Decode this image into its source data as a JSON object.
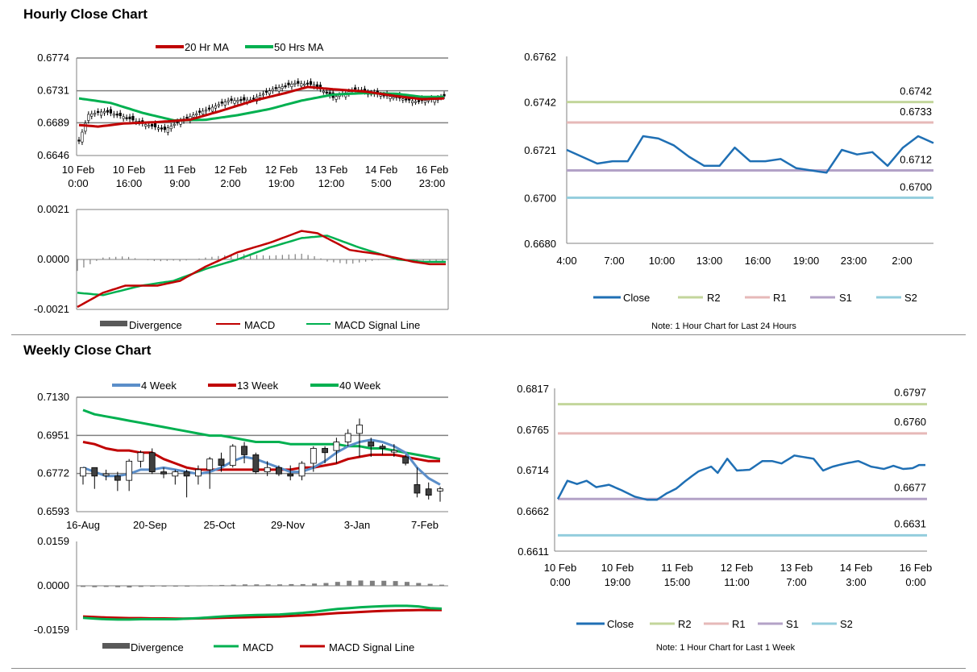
{
  "colors": {
    "ma20": "#c00000",
    "ma50": "#00b050",
    "macd_red": "#c00000",
    "signal_green": "#00b050",
    "divergence": "#7f7f7f",
    "close": "#1f6fb4",
    "r2": "#c3d69b",
    "r1": "#e6b9b8",
    "s1": "#b3a2c7",
    "s2": "#93cddd",
    "wk4": "#5b8ec9",
    "wk13": "#c00000",
    "wk40": "#00b050",
    "candle_up": "#ffffff",
    "candle_down": "#404040",
    "axis": "#808080"
  },
  "hourly": {
    "title": "Hourly Close Chart",
    "price_chart": {
      "legend": [
        "20 Hr MA",
        "50 Hrs MA"
      ],
      "y_ticks": [
        "0.6774",
        "0.6731",
        "0.6689",
        "0.6646"
      ],
      "ylim": [
        0.6646,
        0.6774
      ],
      "x_ticks": [
        [
          "10 Feb",
          "0:00"
        ],
        [
          "10 Feb",
          "16:00"
        ],
        [
          "11 Feb",
          "9:00"
        ],
        [
          "12 Feb",
          "2:00"
        ],
        [
          "12 Feb",
          "19:00"
        ],
        [
          "13 Feb",
          "12:00"
        ],
        [
          "14 Feb",
          "5:00"
        ],
        [
          "16 Feb",
          "23:00"
        ]
      ],
      "chart_data": {
        "type": "candlestick",
        "n": 116,
        "close_anchors": [
          [
            0,
            0.6665
          ],
          [
            3,
            0.67
          ],
          [
            8,
            0.6704
          ],
          [
            14,
            0.6697
          ],
          [
            20,
            0.6688
          ],
          [
            27,
            0.668
          ],
          [
            33,
            0.6694
          ],
          [
            40,
            0.6706
          ],
          [
            47,
            0.6718
          ],
          [
            54,
            0.6719
          ],
          [
            61,
            0.6733
          ],
          [
            68,
            0.6741
          ],
          [
            74,
            0.6739
          ],
          [
            80,
            0.6722
          ],
          [
            87,
            0.6733
          ],
          [
            93,
            0.6727
          ],
          [
            100,
            0.6722
          ],
          [
            106,
            0.6717
          ],
          [
            112,
            0.672
          ],
          [
            115,
            0.6724
          ]
        ],
        "ma20_anchors": [
          [
            0,
            0.6686
          ],
          [
            6,
            0.6684
          ],
          [
            14,
            0.6688
          ],
          [
            25,
            0.669
          ],
          [
            35,
            0.6693
          ],
          [
            45,
            0.6705
          ],
          [
            55,
            0.6718
          ],
          [
            65,
            0.6728
          ],
          [
            72,
            0.6736
          ],
          [
            80,
            0.6733
          ],
          [
            90,
            0.673
          ],
          [
            100,
            0.6724
          ],
          [
            108,
            0.672
          ],
          [
            115,
            0.6721
          ]
        ],
        "ma50_anchors": [
          [
            0,
            0.6721
          ],
          [
            10,
            0.6715
          ],
          [
            20,
            0.6702
          ],
          [
            30,
            0.6692
          ],
          [
            40,
            0.6693
          ],
          [
            50,
            0.6699
          ],
          [
            60,
            0.6707
          ],
          [
            70,
            0.6718
          ],
          [
            80,
            0.6726
          ],
          [
            90,
            0.6728
          ],
          [
            100,
            0.6727
          ],
          [
            108,
            0.6723
          ],
          [
            115,
            0.6723
          ]
        ]
      }
    },
    "macd_chart": {
      "y_ticks": [
        "0.0021",
        "0.0000",
        "-0.0021"
      ],
      "ylim": [
        -0.0021,
        0.0021
      ],
      "legend": [
        "Divergence",
        "MACD",
        "MACD Signal Line"
      ],
      "chart_data": {
        "type": "line+bar",
        "n": 116,
        "macd_anchors": [
          [
            0,
            -0.002
          ],
          [
            8,
            -0.0014
          ],
          [
            15,
            -0.0011
          ],
          [
            25,
            -0.0011
          ],
          [
            32,
            -0.0009
          ],
          [
            40,
            -0.0003
          ],
          [
            50,
            0.0003
          ],
          [
            60,
            0.0007
          ],
          [
            70,
            0.0012
          ],
          [
            75,
            0.0011
          ],
          [
            85,
            0.0004
          ],
          [
            95,
            0.0002
          ],
          [
            105,
            -0.0001
          ],
          [
            110,
            -0.0002
          ],
          [
            115,
            -0.0002
          ]
        ],
        "signal_anchors": [
          [
            0,
            -0.0014
          ],
          [
            8,
            -0.0015
          ],
          [
            20,
            -0.0011
          ],
          [
            30,
            -0.0009
          ],
          [
            40,
            -0.0004
          ],
          [
            50,
            0.0
          ],
          [
            60,
            0.0005
          ],
          [
            70,
            0.0009
          ],
          [
            78,
            0.001
          ],
          [
            88,
            0.0005
          ],
          [
            100,
            0.0
          ],
          [
            108,
            -0.0001
          ],
          [
            115,
            -0.0001
          ]
        ]
      }
    },
    "sr_chart": {
      "y_ticks": [
        "0.6762",
        "0.6742",
        "0.6721",
        "0.6700",
        "0.6680"
      ],
      "ylim": [
        0.668,
        0.6762
      ],
      "x_ticks": [
        "4:00",
        "7:00",
        "10:00",
        "13:00",
        "16:00",
        "19:00",
        "23:00",
        "2:00"
      ],
      "levels": {
        "R2": "0.6742",
        "R1": "0.6733",
        "S1": "0.6712",
        "S2": "0.6700"
      },
      "legend": [
        "Close",
        "R2",
        "R1",
        "S1",
        "S2"
      ],
      "note": "Note: 1 Hour Chart for Last 24 Hours",
      "chart_data": {
        "type": "line",
        "close": [
          0.6721,
          0.6718,
          0.6715,
          0.6716,
          0.6716,
          0.6727,
          0.6726,
          0.6723,
          0.6718,
          0.6714,
          0.6714,
          0.6722,
          0.6716,
          0.6716,
          0.6717,
          0.6713,
          0.6712,
          0.6711,
          0.6721,
          0.6719,
          0.672,
          0.6714,
          0.6722,
          0.6727,
          0.6724
        ],
        "levels": [
          0.6742,
          0.6733,
          0.6712,
          0.67
        ]
      }
    }
  },
  "weekly": {
    "title": "Weekly Close Chart",
    "price_chart": {
      "legend": [
        "4 Week",
        "13 Week",
        "40 Week"
      ],
      "y_ticks": [
        "0.7130",
        "0.6951",
        "0.6772",
        "0.6593"
      ],
      "ylim": [
        0.6593,
        0.713
      ],
      "x_ticks": [
        "16-Aug",
        "20-Sep",
        "25-Oct",
        "29-Nov",
        "3-Jan",
        "7-Feb"
      ],
      "chart_data": {
        "type": "candlestick",
        "candles": [
          [
            0.676,
            0.68,
            0.672,
            0.68
          ],
          [
            0.68,
            0.676,
            0.67,
            0.68
          ],
          [
            0.677,
            0.677,
            0.674,
            0.679
          ],
          [
            0.676,
            0.674,
            0.669,
            0.678
          ],
          [
            0.674,
            0.683,
            0.669,
            0.684
          ],
          [
            0.683,
            0.687,
            0.68,
            0.688
          ],
          [
            0.687,
            0.678,
            0.677,
            0.689
          ],
          [
            0.678,
            0.677,
            0.675,
            0.68
          ],
          [
            0.676,
            0.678,
            0.672,
            0.679
          ],
          [
            0.678,
            0.676,
            0.666,
            0.679
          ],
          [
            0.676,
            0.679,
            0.672,
            0.681
          ],
          [
            0.679,
            0.684,
            0.67,
            0.685
          ],
          [
            0.684,
            0.681,
            0.678,
            0.687
          ],
          [
            0.681,
            0.69,
            0.68,
            0.691
          ],
          [
            0.69,
            0.686,
            0.682,
            0.692
          ],
          [
            0.686,
            0.678,
            0.677,
            0.687
          ],
          [
            0.678,
            0.68,
            0.676,
            0.683
          ],
          [
            0.68,
            0.677,
            0.676,
            0.681
          ],
          [
            0.677,
            0.676,
            0.674,
            0.681
          ],
          [
            0.676,
            0.682,
            0.674,
            0.683
          ],
          [
            0.682,
            0.689,
            0.678,
            0.69
          ],
          [
            0.689,
            0.687,
            0.682,
            0.69
          ],
          [
            0.688,
            0.692,
            0.682,
            0.694
          ],
          [
            0.692,
            0.696,
            0.69,
            0.698
          ],
          [
            0.696,
            0.7,
            0.685,
            0.703
          ],
          [
            0.692,
            0.69,
            0.685,
            0.694
          ],
          [
            0.69,
            0.689,
            0.686,
            0.691
          ],
          [
            0.688,
            0.688,
            0.685,
            0.691
          ],
          [
            0.685,
            0.682,
            0.681,
            0.686
          ],
          [
            0.672,
            0.668,
            0.666,
            0.68
          ],
          [
            0.67,
            0.667,
            0.665,
            0.673
          ],
          [
            0.669,
            0.67,
            0.664,
            0.671
          ]
        ],
        "wk4": [
          0.68,
          0.678,
          0.676,
          0.676,
          0.677,
          0.679,
          0.679,
          0.68,
          0.679,
          0.678,
          0.677,
          0.678,
          0.68,
          0.683,
          0.685,
          0.684,
          0.682,
          0.68,
          0.678,
          0.678,
          0.68,
          0.683,
          0.687,
          0.69,
          0.692,
          0.693,
          0.692,
          0.69,
          0.687,
          0.68,
          0.675,
          0.672
        ],
        "wk13": [
          0.692,
          0.691,
          0.689,
          0.688,
          0.688,
          0.687,
          0.687,
          0.684,
          0.682,
          0.68,
          0.679,
          0.679,
          0.679,
          0.679,
          0.679,
          0.679,
          0.679,
          0.679,
          0.679,
          0.68,
          0.68,
          0.681,
          0.682,
          0.684,
          0.685,
          0.686,
          0.686,
          0.686,
          0.685,
          0.684,
          0.683,
          0.683
        ],
        "wk40": [
          0.707,
          0.705,
          0.704,
          0.703,
          0.702,
          0.701,
          0.7,
          0.699,
          0.698,
          0.697,
          0.696,
          0.695,
          0.695,
          0.694,
          0.693,
          0.692,
          0.692,
          0.692,
          0.691,
          0.691,
          0.691,
          0.691,
          0.691,
          0.69,
          0.69,
          0.689,
          0.689,
          0.688,
          0.687,
          0.686,
          0.685,
          0.684
        ]
      }
    },
    "macd_chart": {
      "y_ticks": [
        "0.0159",
        "0.0000",
        "-0.0159"
      ],
      "ylim": [
        -0.0159,
        0.0159
      ],
      "legend": [
        "Divergence",
        "MACD",
        "MACD Signal Line"
      ],
      "chart_data": {
        "type": "line+bar",
        "divergence": [
          -0.0004,
          -0.0005,
          -0.0004,
          -0.0005,
          -0.0006,
          -0.0004,
          -0.0003,
          -0.0002,
          -0.0001,
          0.0,
          0.0001,
          0.0002,
          0.0003,
          0.0004,
          0.0005,
          0.0005,
          0.0005,
          0.0005,
          0.0006,
          0.0006,
          0.0008,
          0.001,
          0.0014,
          0.0018,
          0.0019,
          0.0018,
          0.0018,
          0.0017,
          0.0014,
          0.001,
          0.0007,
          0.0004
        ],
        "macd": [
          -0.0115,
          -0.0118,
          -0.012,
          -0.0121,
          -0.0121,
          -0.012,
          -0.012,
          -0.012,
          -0.012,
          -0.0118,
          -0.0116,
          -0.0113,
          -0.011,
          -0.0108,
          -0.0106,
          -0.0105,
          -0.0104,
          -0.0103,
          -0.01,
          -0.0097,
          -0.0093,
          -0.0088,
          -0.0083,
          -0.008,
          -0.0077,
          -0.0075,
          -0.0073,
          -0.0072,
          -0.0072,
          -0.0074,
          -0.008,
          -0.0082
        ],
        "signal": [
          -0.011,
          -0.0112,
          -0.0114,
          -0.0115,
          -0.0116,
          -0.0116,
          -0.0117,
          -0.0117,
          -0.0118,
          -0.0118,
          -0.0117,
          -0.0116,
          -0.0115,
          -0.0114,
          -0.0113,
          -0.0112,
          -0.0111,
          -0.011,
          -0.0108,
          -0.0106,
          -0.0104,
          -0.0101,
          -0.0098,
          -0.0096,
          -0.0094,
          -0.0092,
          -0.009,
          -0.0089,
          -0.0088,
          -0.0087,
          -0.0087,
          -0.0087
        ]
      }
    },
    "sr_chart": {
      "y_ticks": [
        "0.6817",
        "0.6765",
        "0.6714",
        "0.6662",
        "0.6611"
      ],
      "ylim": [
        0.6611,
        0.6817
      ],
      "x_ticks": [
        [
          "10 Feb",
          "0:00"
        ],
        [
          "10 Feb",
          "19:00"
        ],
        [
          "11 Feb",
          "15:00"
        ],
        [
          "12 Feb",
          "11:00"
        ],
        [
          "13 Feb",
          "7:00"
        ],
        [
          "14 Feb",
          "3:00"
        ],
        [
          "16 Feb",
          "0:00"
        ]
      ],
      "levels": {
        "R2": "0.6797",
        "R1": "0.6760",
        "S1": "0.6677",
        "S2": "0.6631"
      },
      "legend": [
        "Close",
        "R2",
        "R1",
        "S1",
        "S2"
      ],
      "note": "Note: 1 Hour Chart for Last 1 Week",
      "chart_data": {
        "type": "line",
        "n": 116,
        "close_anchors": [
          [
            0,
            0.6677
          ],
          [
            3,
            0.67
          ],
          [
            6,
            0.6696
          ],
          [
            9,
            0.67
          ],
          [
            12,
            0.6692
          ],
          [
            16,
            0.6695
          ],
          [
            20,
            0.6688
          ],
          [
            24,
            0.668
          ],
          [
            28,
            0.6676
          ],
          [
            31,
            0.6676
          ],
          [
            34,
            0.6684
          ],
          [
            37,
            0.669
          ],
          [
            40,
            0.67
          ],
          [
            44,
            0.6712
          ],
          [
            48,
            0.6718
          ],
          [
            50,
            0.671
          ],
          [
            53,
            0.6728
          ],
          [
            56,
            0.6713
          ],
          [
            60,
            0.6714
          ],
          [
            64,
            0.6725
          ],
          [
            67,
            0.6725
          ],
          [
            70,
            0.6722
          ],
          [
            74,
            0.6732
          ],
          [
            77,
            0.673
          ],
          [
            80,
            0.6728
          ],
          [
            83,
            0.6713
          ],
          [
            86,
            0.6718
          ],
          [
            90,
            0.6722
          ],
          [
            94,
            0.6725
          ],
          [
            98,
            0.6718
          ],
          [
            102,
            0.6715
          ],
          [
            105,
            0.6719
          ],
          [
            108,
            0.6715
          ],
          [
            111,
            0.6716
          ],
          [
            113,
            0.672
          ],
          [
            115,
            0.672
          ]
        ],
        "levels": [
          0.6797,
          0.676,
          0.6677,
          0.6631
        ]
      }
    }
  }
}
